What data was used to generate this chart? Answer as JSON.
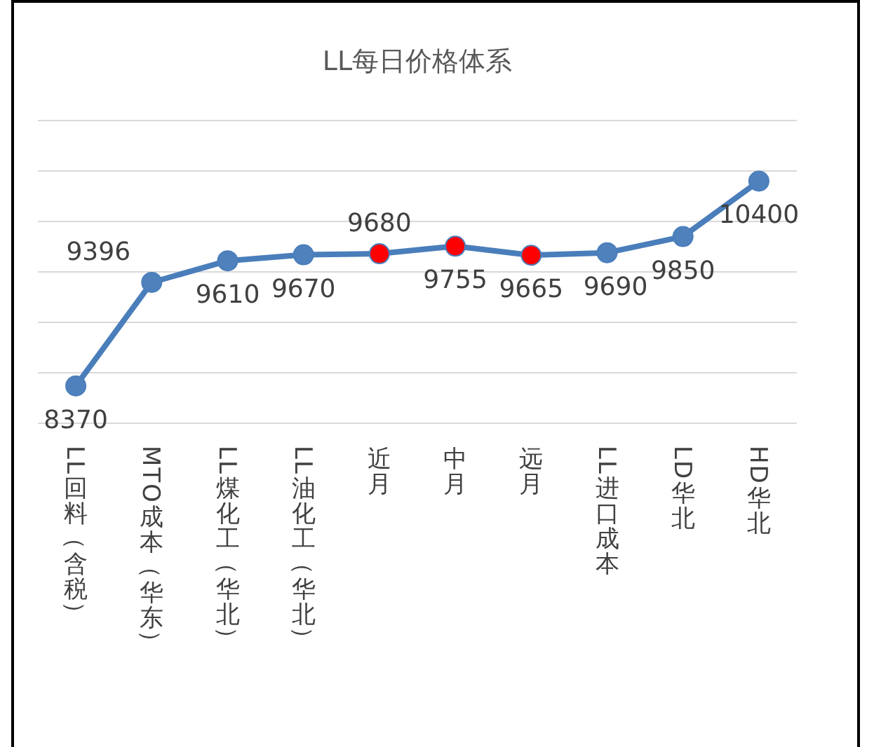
{
  "chart_data": {
    "type": "line",
    "title": "LL每日价格体系",
    "categories": [
      "LL回料（含税）",
      "MTO成本（华东）",
      "LL煤化工（华北）",
      "LL油化工（华北）",
      "近月",
      "中月",
      "远月",
      "LL进口成本",
      "LD华北",
      "HD华北"
    ],
    "series": [
      {
        "color": "#4a7ebb",
        "colors": [
          "#4f81bd",
          "#4f81bd",
          "#4f81bd",
          "#4f81bd",
          "#ff0000",
          "#ff0000",
          "#ff0000",
          "#4f81bd",
          "#4f81bd",
          "#4f81bd"
        ],
        "values": [
          8370,
          9396,
          9610,
          9670,
          9680,
          9755,
          9665,
          9690,
          9850,
          10400
        ]
      }
    ],
    "ylim": [
      8000,
      11000
    ],
    "yticks": [
      {
        "value": 8000,
        "label": null
      },
      {
        "value": 8500,
        "label": null
      },
      {
        "value": 9000,
        "label": null
      },
      {
        "value": 9500,
        "label": null
      },
      {
        "value": 10000,
        "label": null
      },
      {
        "value": 10500,
        "label": null
      },
      {
        "value": 11000,
        "label": null
      }
    ],
    "grid": "y",
    "marker": "circle",
    "line_style": "solid",
    "data_labels": true,
    "tick_labels": "x"
  }
}
